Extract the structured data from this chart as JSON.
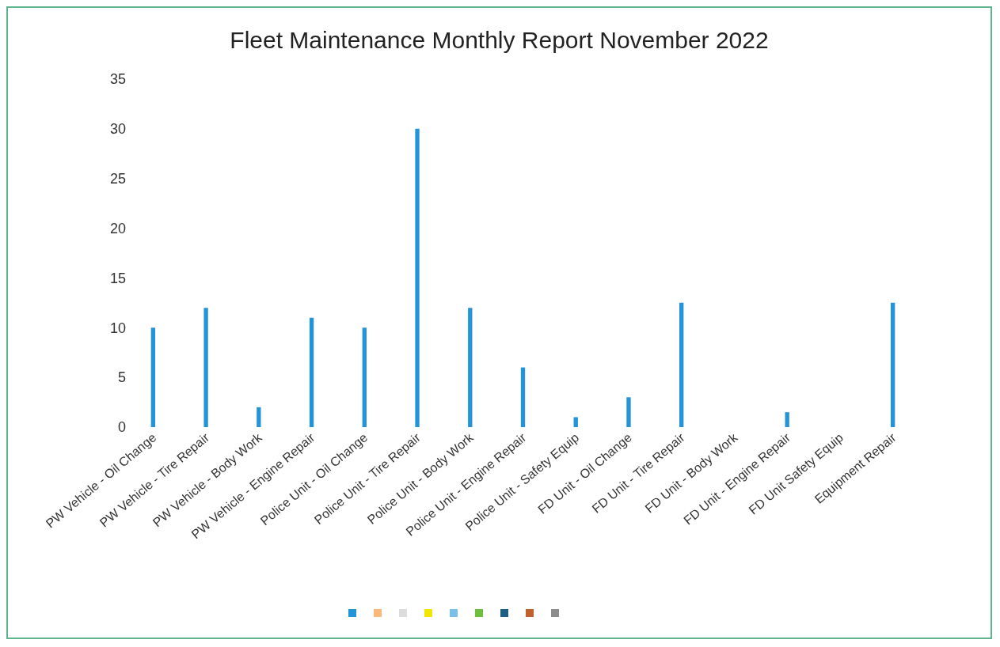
{
  "chart_data": {
    "type": "bar",
    "title": "Fleet Maintenance Monthly Report November 2022",
    "categories": [
      "PW Vehicle - Oil Change",
      "PW Vehicle - Tire Repair",
      "PW Vehicle - Body Work",
      "PW Vehicle - Engine Repair",
      "Police Unit - Oil Change",
      "Police Unit - Tire Repair",
      "Police Unit - Body Work",
      "Police Unit - Engine Repair",
      "Police Unit - Safety Equip",
      "FD Unit - Oil Change",
      "FD Unit - Tire Repair",
      "FD Unit - Body Work",
      "FD Unit - Engine Repair",
      "FD Unit Safety Equip",
      "Equipment Repair"
    ],
    "values": [
      10,
      12,
      2,
      11,
      10,
      30,
      12,
      6,
      1,
      3,
      12.5,
      null,
      1.5,
      null,
      12.5
    ],
    "color": "#2494d8",
    "ylim": [
      0,
      35
    ],
    "yticks": [
      0,
      5,
      10,
      15,
      20,
      25,
      30,
      35
    ],
    "grid": false
  }
}
